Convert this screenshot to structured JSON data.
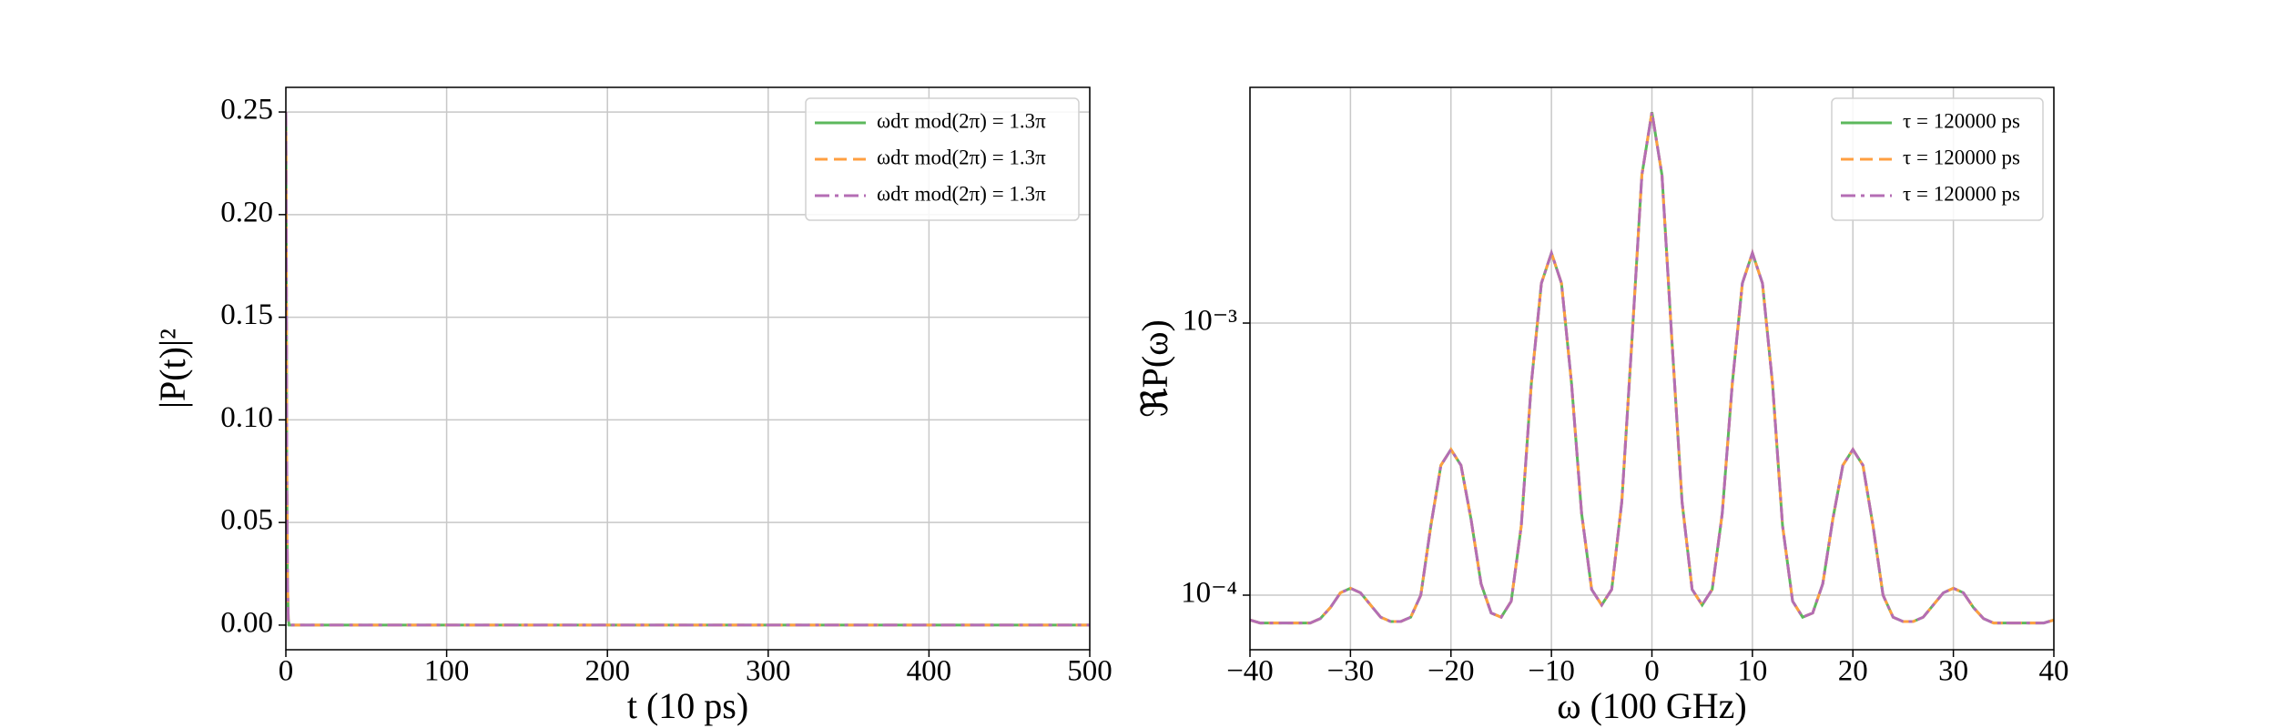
{
  "chart_data": [
    {
      "type": "line",
      "xlabel": "t (10 ps)",
      "ylabel": "|P(t)|²",
      "xlim": [
        0,
        500
      ],
      "ylim": [
        -0.012,
        0.262
      ],
      "xticks": [
        0,
        100,
        200,
        300,
        400,
        500
      ],
      "yticks": [
        {
          "value": 0,
          "label": "0.00"
        },
        {
          "value": 0.05,
          "label": "0.05"
        },
        {
          "value": 0.1,
          "label": "0.10"
        },
        {
          "value": 0.15,
          "label": "0.15"
        },
        {
          "value": 0.2,
          "label": "0.20"
        },
        {
          "value": 0.25,
          "label": "0.25"
        }
      ],
      "grid": true,
      "legend": "upper right",
      "x": [
        0,
        0.3,
        0.6,
        1,
        1.5,
        2,
        500
      ],
      "series": [
        {
          "name": "ωdτ mod(2π) = 1.3π",
          "color": "#5cb85c",
          "linestyle": "solid",
          "values": [
            0.25,
            0.18,
            0.075,
            0.02,
            0.003,
            0,
            0
          ]
        },
        {
          "name": "ωdτ mod(2π) = 1.3π",
          "color": "#ff9f40",
          "linestyle": "dashed",
          "values": [
            0.25,
            0.18,
            0.075,
            0.02,
            0.003,
            0,
            0
          ]
        },
        {
          "name": "ωdτ mod(2π) = 1.3π",
          "color": "#b46db4",
          "linestyle": "dashdot",
          "values": [
            0.25,
            0.18,
            0.075,
            0.02,
            0.003,
            0,
            0
          ]
        }
      ]
    },
    {
      "type": "line",
      "xlabel": "ω (100 GHz)",
      "ylabel": "ℜP(ω)",
      "yscale": "log",
      "xlim": [
        -40,
        40
      ],
      "ylim": [
        6.3e-05,
        0.00735
      ],
      "xticks": [
        {
          "value": -40,
          "label": "−40"
        },
        {
          "value": -30,
          "label": "−30"
        },
        {
          "value": -20,
          "label": "−20"
        },
        {
          "value": -10,
          "label": "−10"
        },
        0,
        10,
        20,
        30,
        40
      ],
      "yticks": [
        {
          "value": 0.0001,
          "label": "10⁻⁴"
        },
        {
          "value": 0.001,
          "label": "10⁻³"
        }
      ],
      "grid": true,
      "legend": "upper right",
      "x": [
        -40,
        -39,
        -38,
        -37,
        -36,
        -35,
        -34,
        -33,
        -32,
        -31,
        -30,
        -29,
        -28,
        -27,
        -26,
        -25,
        -24,
        -23,
        -22,
        -21,
        -20,
        -19,
        -18,
        -17,
        -16,
        -15,
        -14,
        -13,
        -12,
        -11,
        -10,
        -9,
        -8,
        -7,
        -6,
        -5,
        -4,
        -3,
        -2,
        -1,
        0,
        1,
        2,
        3,
        4,
        5,
        6,
        7,
        8,
        9,
        10,
        11,
        12,
        13,
        14,
        15,
        16,
        17,
        18,
        19,
        20,
        21,
        22,
        23,
        24,
        25,
        26,
        27,
        28,
        29,
        30,
        31,
        32,
        33,
        34,
        35,
        36,
        37,
        38,
        39,
        40
      ],
      "series": [
        {
          "name": "τ = 120000 ps",
          "color": "#5cb85c",
          "linestyle": "solid",
          "values": [
            8.1e-05,
            7.9e-05,
            7.9e-05,
            7.9e-05,
            7.9e-05,
            7.9e-05,
            7.9e-05,
            8.2e-05,
            9e-05,
            0.000102,
            0.000106,
            0.000102,
            9.2e-05,
            8.3e-05,
            8e-05,
            8e-05,
            8.3e-05,
            0.0001,
            0.00018,
            0.0003,
            0.000343,
            0.0003,
            0.00019,
            0.00011,
            8.6e-05,
            8.3e-05,
            9.5e-05,
            0.00018,
            0.0006,
            0.0014,
            0.00181,
            0.0014,
            0.0006,
            0.0002,
            0.000105,
            9.2e-05,
            0.000105,
            0.00022,
            0.00085,
            0.0035,
            0.00596,
            0.0035,
            0.00085,
            0.00022,
            0.000105,
            9.2e-05,
            0.000105,
            0.0002,
            0.0006,
            0.0014,
            0.00181,
            0.0014,
            0.0006,
            0.00018,
            9.5e-05,
            8.3e-05,
            8.6e-05,
            0.00011,
            0.00019,
            0.0003,
            0.000343,
            0.0003,
            0.00018,
            0.0001,
            8.3e-05,
            8e-05,
            8e-05,
            8.3e-05,
            9.2e-05,
            0.000102,
            0.000106,
            0.000102,
            9e-05,
            8.2e-05,
            7.9e-05,
            7.9e-05,
            7.9e-05,
            7.9e-05,
            7.9e-05,
            7.9e-05,
            8.1e-05
          ]
        },
        {
          "name": "τ = 120000 ps",
          "color": "#ff9f40",
          "linestyle": "dashed",
          "values": [
            8.1e-05,
            7.9e-05,
            7.9e-05,
            7.9e-05,
            7.9e-05,
            7.9e-05,
            7.9e-05,
            8.2e-05,
            9e-05,
            0.000102,
            0.000106,
            0.000102,
            9.2e-05,
            8.3e-05,
            8e-05,
            8e-05,
            8.3e-05,
            0.0001,
            0.00018,
            0.0003,
            0.000343,
            0.0003,
            0.00019,
            0.00011,
            8.6e-05,
            8.3e-05,
            9.5e-05,
            0.00018,
            0.0006,
            0.0014,
            0.00181,
            0.0014,
            0.0006,
            0.0002,
            0.000105,
            9.2e-05,
            0.000105,
            0.00022,
            0.00085,
            0.0035,
            0.00596,
            0.0035,
            0.00085,
            0.00022,
            0.000105,
            9.2e-05,
            0.000105,
            0.0002,
            0.0006,
            0.0014,
            0.00181,
            0.0014,
            0.0006,
            0.00018,
            9.5e-05,
            8.3e-05,
            8.6e-05,
            0.00011,
            0.00019,
            0.0003,
            0.000343,
            0.0003,
            0.00018,
            0.0001,
            8.3e-05,
            8e-05,
            8e-05,
            8.3e-05,
            9.2e-05,
            0.000102,
            0.000106,
            0.000102,
            9e-05,
            8.2e-05,
            7.9e-05,
            7.9e-05,
            7.9e-05,
            7.9e-05,
            7.9e-05,
            7.9e-05,
            8.1e-05
          ]
        },
        {
          "name": "τ = 120000 ps",
          "color": "#b46db4",
          "linestyle": "dashdot",
          "values": [
            8.1e-05,
            7.9e-05,
            7.9e-05,
            7.9e-05,
            7.9e-05,
            7.9e-05,
            7.9e-05,
            8.2e-05,
            9e-05,
            0.000102,
            0.000106,
            0.000102,
            9.2e-05,
            8.3e-05,
            8e-05,
            8e-05,
            8.3e-05,
            0.0001,
            0.00018,
            0.0003,
            0.000343,
            0.0003,
            0.00019,
            0.00011,
            8.6e-05,
            8.3e-05,
            9.5e-05,
            0.00018,
            0.0006,
            0.0014,
            0.00181,
            0.0014,
            0.0006,
            0.0002,
            0.000105,
            9.2e-05,
            0.000105,
            0.00022,
            0.00085,
            0.0035,
            0.00596,
            0.0035,
            0.00085,
            0.00022,
            0.000105,
            9.2e-05,
            0.000105,
            0.0002,
            0.0006,
            0.0014,
            0.00181,
            0.0014,
            0.0006,
            0.00018,
            9.5e-05,
            8.3e-05,
            8.6e-05,
            0.00011,
            0.00019,
            0.0003,
            0.000343,
            0.0003,
            0.00018,
            0.0001,
            8.3e-05,
            8e-05,
            8e-05,
            8.3e-05,
            9.2e-05,
            0.000102,
            0.000106,
            0.000102,
            9e-05,
            8.2e-05,
            7.9e-05,
            7.9e-05,
            7.9e-05,
            7.9e-05,
            7.9e-05,
            7.9e-05,
            8.1e-05
          ]
        }
      ]
    }
  ]
}
